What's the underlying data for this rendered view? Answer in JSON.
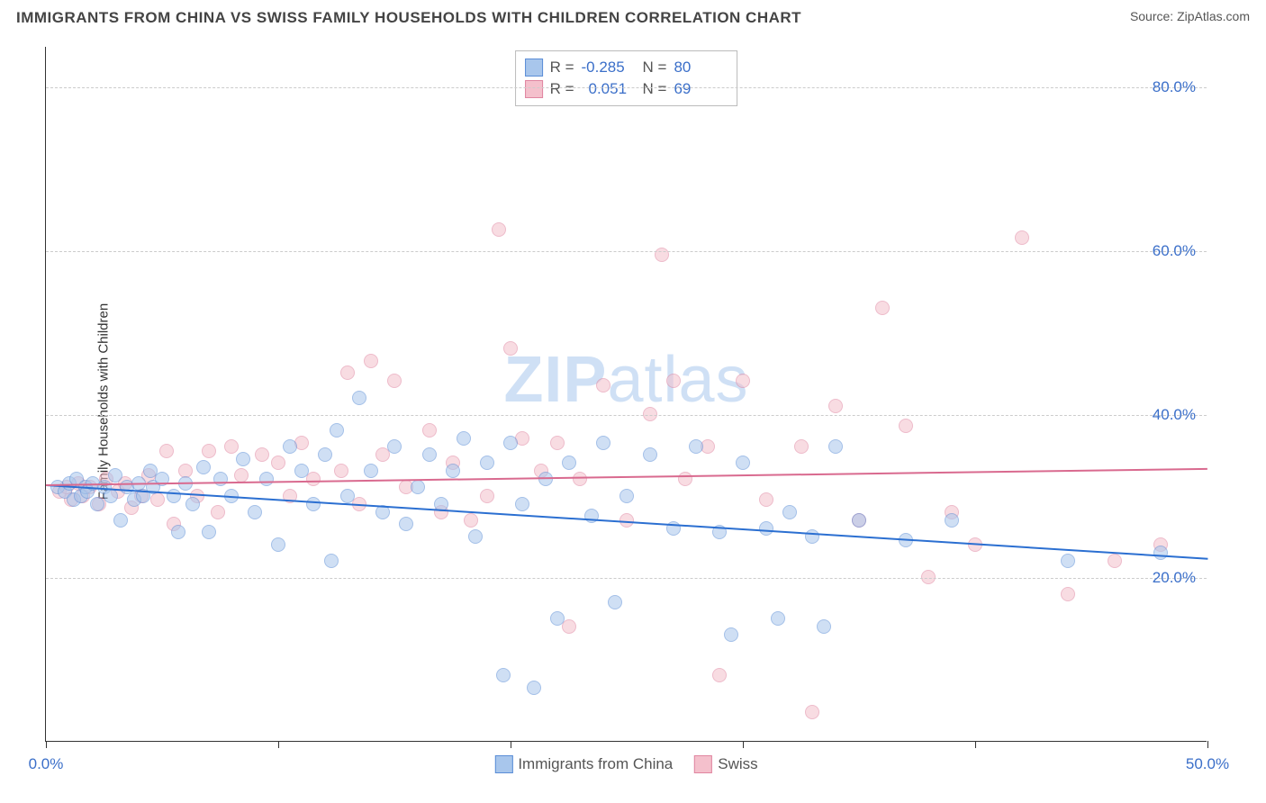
{
  "title": "IMMIGRANTS FROM CHINA VS SWISS FAMILY HOUSEHOLDS WITH CHILDREN CORRELATION CHART",
  "source_label": "Source: ZipAtlas.com",
  "y_axis_label": "Family Households with Children",
  "watermark": {
    "bold": "ZIP",
    "rest": "atlas"
  },
  "chart": {
    "type": "scatter",
    "background_color": "#ffffff",
    "grid_color": "#cccccc",
    "axis_color": "#333333",
    "tick_label_color": "#3b6fc9",
    "xlim": [
      0,
      50
    ],
    "ylim": [
      0,
      85
    ],
    "x_tick_positions": [
      0,
      10,
      20,
      30,
      40,
      50
    ],
    "x_tick_labels": [
      "0.0%",
      "",
      "",
      "",
      "",
      "50.0%"
    ],
    "y_grid_positions": [
      20,
      40,
      60,
      80
    ],
    "y_tick_labels": [
      "20.0%",
      "40.0%",
      "60.0%",
      "80.0%"
    ],
    "marker_radius": 8,
    "marker_opacity": 0.55,
    "series": [
      {
        "name": "Immigrants from China",
        "color_fill": "#a8c6ec",
        "color_stroke": "#5a8dd6",
        "trend_color": "#2b6fd1",
        "trend_width": 2,
        "R": "-0.285",
        "N": "80",
        "trend_line": {
          "x1": 0,
          "y1": 31.5,
          "x2": 50,
          "y2": 22.5
        },
        "points": [
          [
            0.5,
            31
          ],
          [
            0.8,
            30.5
          ],
          [
            1,
            31.5
          ],
          [
            1.2,
            29.5
          ],
          [
            1.3,
            32
          ],
          [
            1.5,
            30
          ],
          [
            1.7,
            31
          ],
          [
            1.8,
            30.5
          ],
          [
            2,
            31.5
          ],
          [
            2.2,
            29
          ],
          [
            2.5,
            31
          ],
          [
            2.8,
            30
          ],
          [
            3,
            32.5
          ],
          [
            3.2,
            27
          ],
          [
            3.5,
            31
          ],
          [
            3.8,
            29.5
          ],
          [
            4,
            31.5
          ],
          [
            4.2,
            30
          ],
          [
            4.5,
            33
          ],
          [
            4.6,
            31
          ],
          [
            5,
            32
          ],
          [
            5.5,
            30
          ],
          [
            5.7,
            25.5
          ],
          [
            6,
            31.5
          ],
          [
            6.3,
            29
          ],
          [
            6.8,
            33.5
          ],
          [
            7,
            25.5
          ],
          [
            7.5,
            32
          ],
          [
            8,
            30
          ],
          [
            8.5,
            34.5
          ],
          [
            9,
            28
          ],
          [
            9.5,
            32
          ],
          [
            10,
            24
          ],
          [
            10.5,
            36
          ],
          [
            11,
            33
          ],
          [
            11.5,
            29
          ],
          [
            12,
            35
          ],
          [
            12.3,
            22
          ],
          [
            12.5,
            38
          ],
          [
            13,
            30
          ],
          [
            13.5,
            42
          ],
          [
            14,
            33
          ],
          [
            14.5,
            28
          ],
          [
            15,
            36
          ],
          [
            15.5,
            26.5
          ],
          [
            16,
            31
          ],
          [
            16.5,
            35
          ],
          [
            17,
            29
          ],
          [
            17.5,
            33
          ],
          [
            18,
            37
          ],
          [
            18.5,
            25
          ],
          [
            19,
            34
          ],
          [
            19.7,
            8
          ],
          [
            20,
            36.5
          ],
          [
            20.5,
            29
          ],
          [
            21,
            6.5
          ],
          [
            21.5,
            32
          ],
          [
            22,
            15
          ],
          [
            22.5,
            34
          ],
          [
            23.5,
            27.5
          ],
          [
            24,
            36.5
          ],
          [
            24.5,
            17
          ],
          [
            25,
            30
          ],
          [
            26,
            35
          ],
          [
            27,
            26
          ],
          [
            28,
            36
          ],
          [
            29,
            25.5
          ],
          [
            29.5,
            13
          ],
          [
            30,
            34
          ],
          [
            31,
            26
          ],
          [
            31.5,
            15
          ],
          [
            32,
            28
          ],
          [
            33,
            25
          ],
          [
            33.5,
            14
          ],
          [
            34,
            36
          ],
          [
            35,
            27
          ],
          [
            37,
            24.5
          ],
          [
            39,
            27
          ],
          [
            44,
            22
          ],
          [
            48,
            23
          ]
        ]
      },
      {
        "name": "Swiss",
        "color_fill": "#f4c0cc",
        "color_stroke": "#e085a0",
        "trend_color": "#d96a8f",
        "trend_width": 2,
        "R": "0.051",
        "N": "69",
        "trend_line": {
          "x1": 0,
          "y1": 31.5,
          "x2": 50,
          "y2": 33.5
        },
        "points": [
          [
            0.6,
            30.5
          ],
          [
            0.9,
            31
          ],
          [
            1.1,
            29.5
          ],
          [
            1.4,
            31.5
          ],
          [
            1.6,
            30
          ],
          [
            1.9,
            31
          ],
          [
            2.3,
            29
          ],
          [
            2.6,
            32
          ],
          [
            3.1,
            30.5
          ],
          [
            3.4,
            31.5
          ],
          [
            3.7,
            28.5
          ],
          [
            4.1,
            30
          ],
          [
            4.4,
            32.5
          ],
          [
            4.8,
            29.5
          ],
          [
            5.2,
            35.5
          ],
          [
            5.5,
            26.5
          ],
          [
            6,
            33
          ],
          [
            6.5,
            30
          ],
          [
            7,
            35.5
          ],
          [
            7.4,
            28
          ],
          [
            8,
            36
          ],
          [
            8.4,
            32.5
          ],
          [
            9.3,
            35
          ],
          [
            10,
            34
          ],
          [
            10.5,
            30
          ],
          [
            11,
            36.5
          ],
          [
            11.5,
            32
          ],
          [
            12.7,
            33
          ],
          [
            13,
            45
          ],
          [
            13.5,
            29
          ],
          [
            14,
            46.5
          ],
          [
            14.5,
            35
          ],
          [
            15,
            44
          ],
          [
            15.5,
            31
          ],
          [
            16.5,
            38
          ],
          [
            17,
            28
          ],
          [
            17.5,
            34
          ],
          [
            18.3,
            27
          ],
          [
            19,
            30
          ],
          [
            19.5,
            62.5
          ],
          [
            20,
            48
          ],
          [
            20.5,
            37
          ],
          [
            21.3,
            33
          ],
          [
            22,
            36.5
          ],
          [
            22.5,
            14
          ],
          [
            23,
            32
          ],
          [
            24,
            43.5
          ],
          [
            25,
            27
          ],
          [
            26,
            40
          ],
          [
            26.5,
            59.5
          ],
          [
            27,
            44
          ],
          [
            27.5,
            32
          ],
          [
            28.5,
            36
          ],
          [
            29,
            8
          ],
          [
            30,
            44
          ],
          [
            31,
            29.5
          ],
          [
            32.5,
            36
          ],
          [
            33,
            3.5
          ],
          [
            34,
            41
          ],
          [
            35,
            27
          ],
          [
            36,
            53
          ],
          [
            37,
            38.5
          ],
          [
            38,
            20
          ],
          [
            39,
            28
          ],
          [
            40,
            24
          ],
          [
            42,
            61.5
          ],
          [
            44,
            18
          ],
          [
            46,
            22
          ],
          [
            48,
            24
          ]
        ]
      }
    ]
  },
  "legend_bottom": {
    "items": [
      {
        "label": "Immigrants from China",
        "fill": "#a8c6ec",
        "stroke": "#5a8dd6"
      },
      {
        "label": "Swiss",
        "fill": "#f4c0cc",
        "stroke": "#e085a0"
      }
    ]
  }
}
